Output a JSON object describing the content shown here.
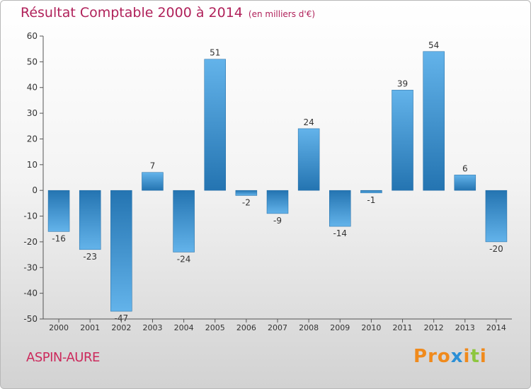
{
  "header": {
    "title": "Résultat Comptable 2000 à 2014",
    "subtitle": "(en milliers d'€)"
  },
  "footer": {
    "commune": "ASPIN-AURE",
    "brand": "Proxiti"
  },
  "colors": {
    "title": "#b0215a",
    "commune": "#cc2a5c",
    "bar_dark": "#2474b1",
    "bar_light": "#63b3ea",
    "brand_letters": [
      "#f08a1c",
      "#f08a1c",
      "#f08a1c",
      "#2b8fd6",
      "#f08a1c",
      "#8dc63f",
      "#f08a1c"
    ]
  },
  "chart_data": {
    "type": "bar",
    "categories": [
      "2000",
      "2001",
      "2002",
      "2003",
      "2004",
      "2005",
      "2006",
      "2007",
      "2008",
      "2009",
      "2010",
      "2011",
      "2012",
      "2013",
      "2014"
    ],
    "values": [
      -16,
      -23,
      -47,
      7,
      -24,
      51,
      -2,
      -9,
      24,
      -14,
      -1,
      39,
      54,
      6,
      -20
    ],
    "data_labels": [
      "-16",
      "-23",
      "-47",
      "7",
      "-24",
      "51",
      "-2",
      "-9",
      "24",
      "-14",
      "-1",
      "39",
      "54",
      "6",
      "-20"
    ],
    "ylim": [
      -50,
      60
    ],
    "yticks": [
      -50,
      -40,
      -30,
      -20,
      -10,
      0,
      10,
      20,
      30,
      40,
      50,
      60
    ],
    "grid": false,
    "legend": "none"
  }
}
